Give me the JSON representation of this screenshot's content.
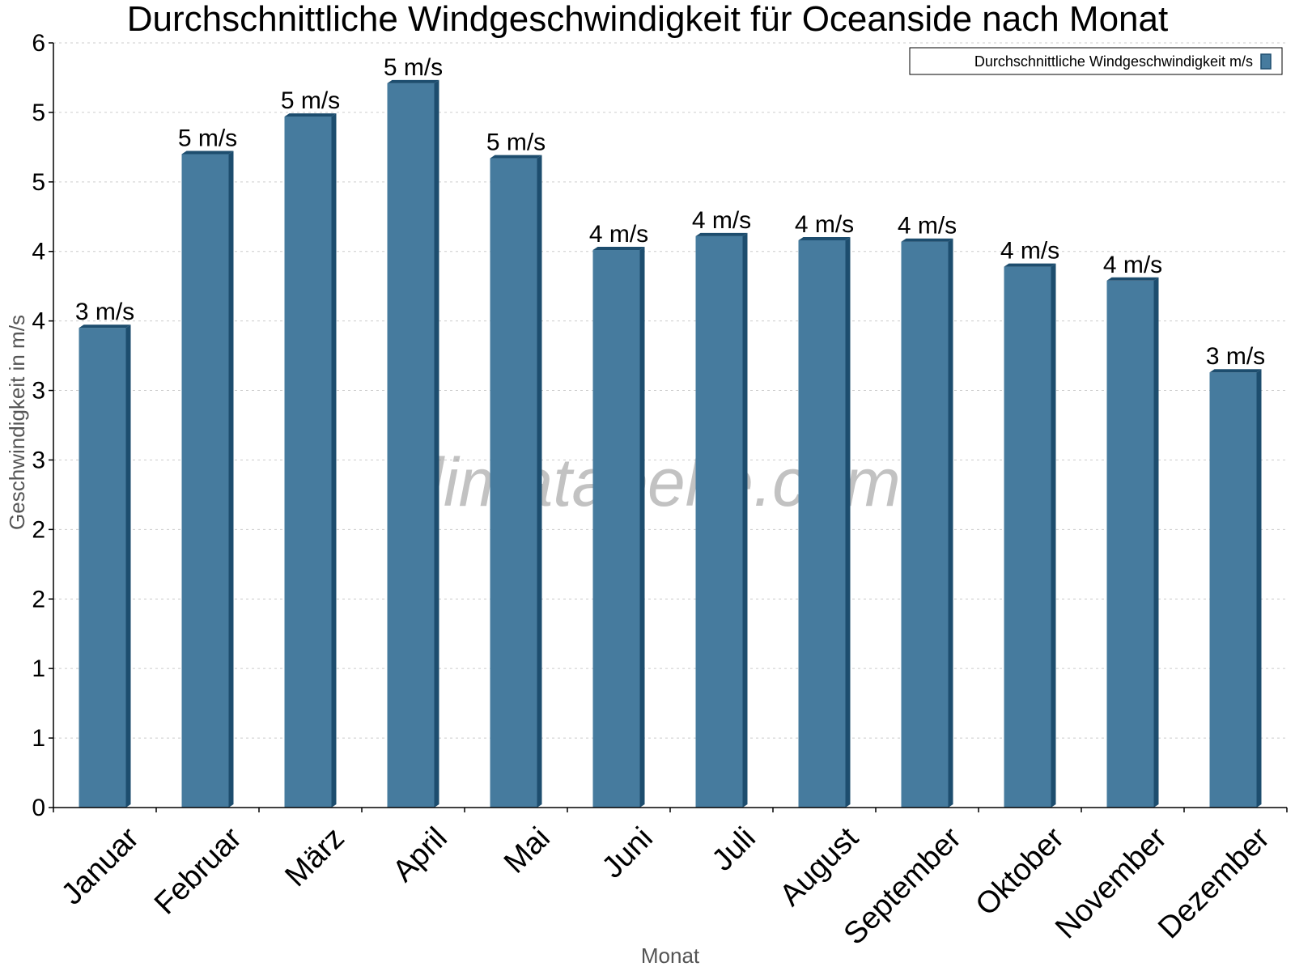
{
  "chart_data": {
    "type": "bar",
    "title": "Durchschnittliche Windgeschwindigkeit für Oceanside nach Monat",
    "xlabel": "Monat",
    "ylabel": "Geschwindigkeit in m/s",
    "categories": [
      "Januar",
      "Februar",
      "März",
      "April",
      "Mai",
      "Juni",
      "Juli",
      "August",
      "September",
      "Oktober",
      "November",
      "Dezember"
    ],
    "series": [
      {
        "name": "Durchschnittliche Windgeschwindigkeit m/s",
        "values": [
          3.45,
          4.7,
          4.97,
          5.21,
          4.67,
          4.01,
          4.11,
          4.08,
          4.07,
          3.89,
          3.79,
          3.13
        ],
        "labels": [
          "3 m/s",
          "5 m/s",
          "5 m/s",
          "5 m/s",
          "5 m/s",
          "4 m/s",
          "4 m/s",
          "4 m/s",
          "4 m/s",
          "4 m/s",
          "4 m/s",
          "3 m/s"
        ]
      }
    ],
    "ylim": [
      0,
      5.5
    ],
    "yticks": [
      0,
      0.5,
      1,
      1.5,
      2,
      2.5,
      3,
      3.5,
      4,
      4.5,
      5,
      5.5
    ],
    "ytick_labels": [
      "0",
      "1",
      "1",
      "2",
      "2",
      "3",
      "3",
      "4",
      "4",
      "5",
      "5",
      "6"
    ],
    "grid": true,
    "legend": "top-right",
    "colors": {
      "bar": "#467b9e",
      "bar_side": "#1d4d6e",
      "grid": "#cccccc",
      "axis": "#000000"
    }
  },
  "watermark": "klimatabelle.com"
}
